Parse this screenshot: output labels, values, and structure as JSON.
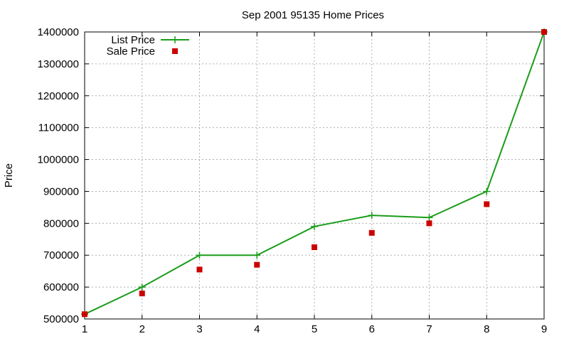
{
  "chart_data": {
    "type": "line",
    "title": "Sep 2001 95135 Home Prices",
    "xlabel": "",
    "ylabel": "Price",
    "x": [
      1,
      2,
      3,
      4,
      5,
      6,
      7,
      8,
      9
    ],
    "xlim": [
      1,
      9
    ],
    "ylim": [
      500000,
      1400000
    ],
    "xticks": [
      "1",
      "2",
      "3",
      "4",
      "5",
      "6",
      "7",
      "8",
      "9"
    ],
    "yticks": [
      "500000",
      "600000",
      "700000",
      "800000",
      "900000",
      "1000000",
      "1100000",
      "1200000",
      "1300000",
      "1400000"
    ],
    "grid": true,
    "legend_position": "top-left",
    "series": [
      {
        "name": "List Price",
        "style": "line-with-plus-markers",
        "color": "#1a9c1a",
        "values": [
          515000,
          600000,
          700000,
          700000,
          790000,
          825000,
          818000,
          900000,
          1400000
        ]
      },
      {
        "name": "Sale Price",
        "style": "square-markers",
        "color": "#cc0000",
        "values": [
          515000,
          580000,
          655000,
          670000,
          725000,
          770000,
          800000,
          860000,
          1400000
        ]
      }
    ]
  }
}
